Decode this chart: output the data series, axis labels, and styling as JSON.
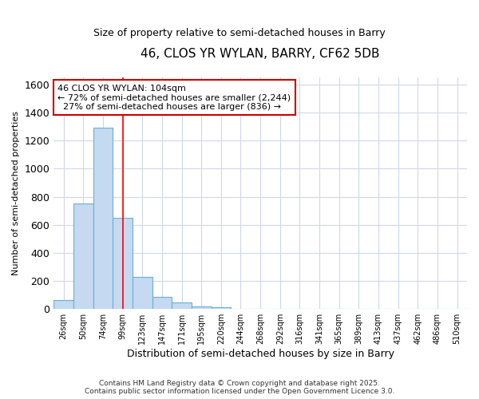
{
  "title": "46, CLOS YR WYLAN, BARRY, CF62 5DB",
  "subtitle": "Size of property relative to semi-detached houses in Barry",
  "xlabel": "Distribution of semi-detached houses by size in Barry",
  "ylabel": "Number of semi-detached properties",
  "categories": [
    "26sqm",
    "50sqm",
    "74sqm",
    "99sqm",
    "123sqm",
    "147sqm",
    "171sqm",
    "195sqm",
    "220sqm",
    "244sqm",
    "268sqm",
    "292sqm",
    "316sqm",
    "341sqm",
    "365sqm",
    "389sqm",
    "413sqm",
    "437sqm",
    "462sqm",
    "486sqm",
    "510sqm"
  ],
  "values": [
    65,
    750,
    1290,
    650,
    230,
    85,
    45,
    20,
    10,
    0,
    0,
    0,
    0,
    0,
    0,
    0,
    0,
    0,
    0,
    0,
    0
  ],
  "bar_color": "#c5d9f0",
  "bar_edge_color": "#6aafd6",
  "red_line_x": 3.0,
  "annotation_line1": "46 CLOS YR WYLAN: 104sqm",
  "annotation_line2": "← 72% of semi-detached houses are smaller (2,244)",
  "annotation_line3": "  27% of semi-detached houses are larger (836) →",
  "annotation_box_color": "#ffffff",
  "annotation_box_edge": "#cc0000",
  "footer_line1": "Contains HM Land Registry data © Crown copyright and database right 2025.",
  "footer_line2": "Contains public sector information licensed under the Open Government Licence 3.0.",
  "ylim": [
    0,
    1650
  ],
  "background_color": "#ffffff",
  "plot_background": "#ffffff",
  "grid_color": "#d0d8e8"
}
